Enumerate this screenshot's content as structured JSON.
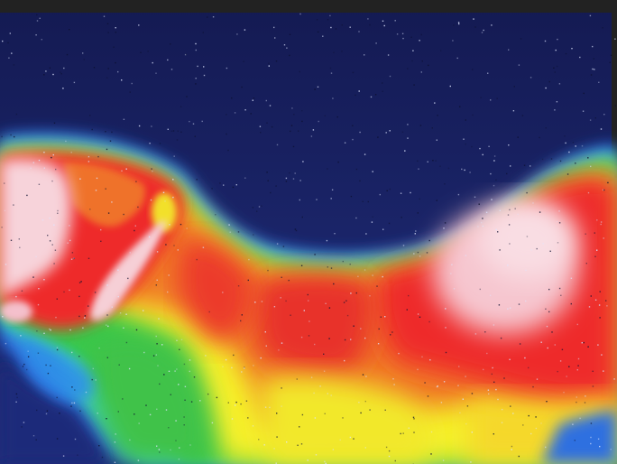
{
  "image": {
    "kind": "thermal-infrared-photo",
    "subject": "dog-thermal-image",
    "palette": {
      "cold": "#1a2470",
      "cool": "#2f6fe0",
      "mid": "#37c84a",
      "warm": "#f5f02a",
      "hot": "#ee2a2a",
      "hottest": "#f7d6dc",
      "frame": "#222222"
    }
  }
}
